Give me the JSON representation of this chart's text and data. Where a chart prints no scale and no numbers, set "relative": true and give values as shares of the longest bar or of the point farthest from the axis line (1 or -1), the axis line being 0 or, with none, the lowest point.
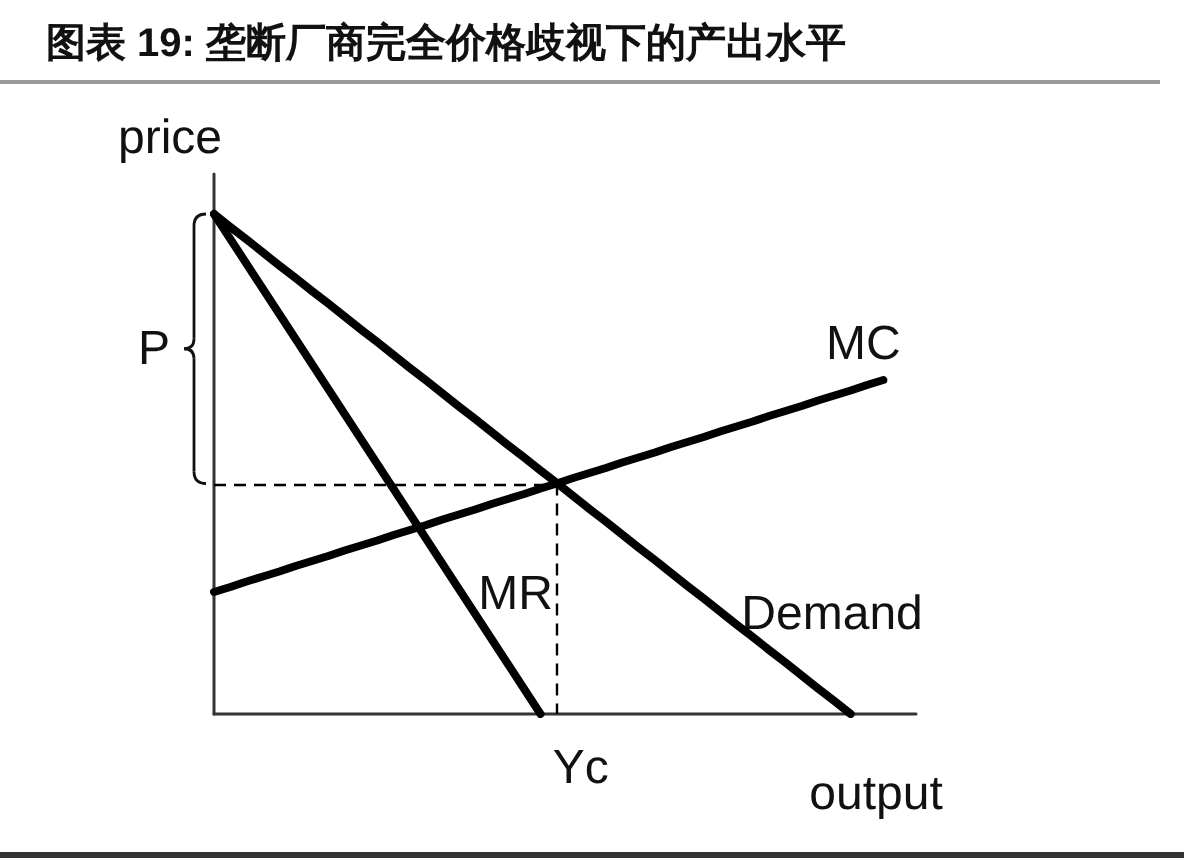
{
  "chart_data": {
    "type": "line",
    "title": "图表 19: 垄断厂商完全价格歧视下的产出水平",
    "xlabel": "output",
    "ylabel": "price",
    "relative": true,
    "tick_labels": false,
    "line_style": "solid",
    "categories": [
      null,
      null,
      null,
      null,
      null,
      null,
      null,
      null,
      null,
      null,
      null,
      null,
      null,
      null,
      null,
      null,
      null,
      null,
      null,
      null,
      null,
      null,
      null,
      null,
      null,
      null,
      null,
      null,
      null,
      null,
      null,
      null,
      null,
      null,
      null,
      null,
      null,
      null,
      null,
      null,
      null,
      null,
      null,
      null
    ],
    "series": [
      {
        "name": "MC",
        "color": "#000000",
        "values": [
          0.244,
          0.254,
          0.265,
          0.275,
          0.285,
          0.296,
          0.306,
          0.316,
          0.327,
          0.337,
          0.347,
          0.358,
          0.368,
          0.378,
          0.389,
          0.399,
          0.409,
          0.42,
          0.43,
          0.44,
          0.451,
          0.461,
          0.472,
          0.482,
          0.492,
          0.503,
          0.513,
          0.523,
          0.534,
          0.544,
          0.554,
          0.565,
          0.575,
          0.585,
          0.596,
          0.606,
          0.616,
          0.627,
          0.637,
          0.647,
          0.658,
          0.668,
          null,
          null
        ]
      },
      {
        "name": "MR",
        "color": "#000000",
        "values": [
          1,
          0.95,
          0.9,
          0.85,
          0.8,
          0.75,
          0.7,
          0.65,
          0.6,
          0.55,
          0.5,
          0.45,
          0.4,
          0.35,
          0.3,
          0.25,
          0.2,
          0.15,
          0.1,
          0.05,
          0,
          null,
          null,
          null,
          null,
          null,
          null,
          null,
          null,
          null,
          null,
          null,
          null,
          null,
          null,
          null,
          null,
          null,
          null,
          null,
          null,
          null,
          null,
          null
        ]
      },
      {
        "name": "Demand",
        "color": "#000000",
        "values": [
          1,
          0.974,
          0.949,
          0.923,
          0.897,
          0.872,
          0.846,
          0.821,
          0.795,
          0.769,
          0.744,
          0.718,
          0.692,
          0.667,
          0.641,
          0.615,
          0.59,
          0.564,
          0.538,
          0.513,
          0.487,
          0.462,
          0.436,
          0.41,
          0.385,
          0.359,
          0.333,
          0.308,
          0.282,
          0.256,
          0.231,
          0.205,
          0.179,
          0.154,
          0.128,
          0.103,
          0.077,
          0.051,
          0.026,
          0,
          null,
          null,
          null,
          null
        ]
      }
    ],
    "ref_lines": [
      {
        "axis": "y",
        "value": 0.461,
        "line_style": "dashed",
        "color": "#000000"
      }
    ],
    "annotations": [
      "P",
      "Yc"
    ]
  }
}
